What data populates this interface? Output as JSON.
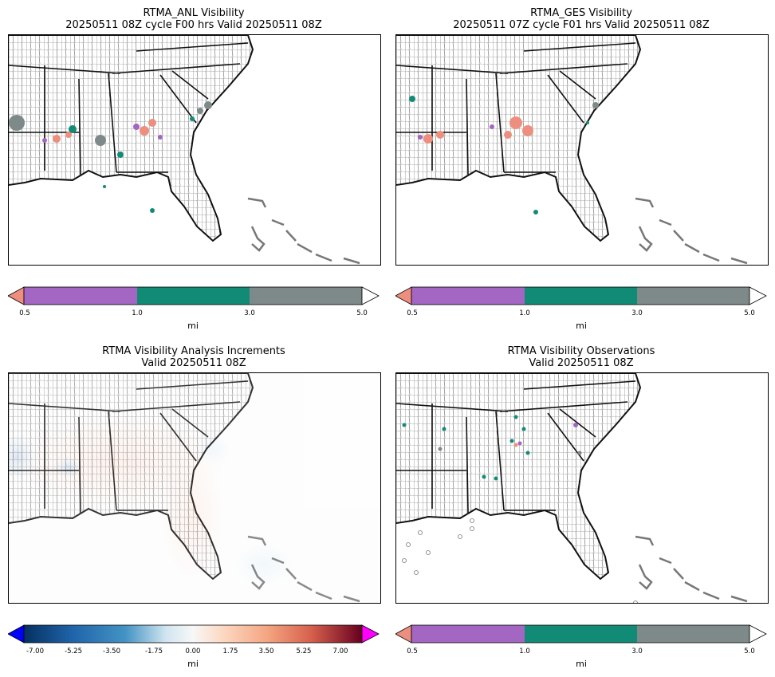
{
  "panels": {
    "anl": {
      "title_line1": "RTMA_ANL Visibility",
      "title_line2": "20250511 08Z cycle F00 hrs Valid 20250511 08Z"
    },
    "ges": {
      "title_line1": "RTMA_GES Visibility",
      "title_line2": "20250511 07Z cycle F01 hrs Valid 20250511 08Z"
    },
    "inc": {
      "title_line1": "RTMA Visibility Analysis Increments",
      "title_line2": "Valid 20250511 08Z"
    },
    "obs": {
      "title_line1": "RTMA Visibility Observations",
      "title_line2": "Valid 20250511 08Z"
    }
  },
  "vis_colorbar": {
    "ticks": [
      "0.5",
      "1.0",
      "3.0",
      "5.0"
    ],
    "unit": "mi",
    "colors": {
      "under": "#ee8e7e",
      "c1": "#a366c2",
      "c2": "#128b76",
      "c3": "#7e8a89",
      "over": "#ffffff"
    }
  },
  "inc_colorbar": {
    "ticks": [
      "-7.00",
      "-5.25",
      "-3.50",
      "-1.75",
      "0.00",
      "1.75",
      "3.50",
      "5.25",
      "7.00"
    ],
    "unit": "mi",
    "colors": {
      "under": "#0000ff",
      "over": "#ff00ff"
    }
  }
}
